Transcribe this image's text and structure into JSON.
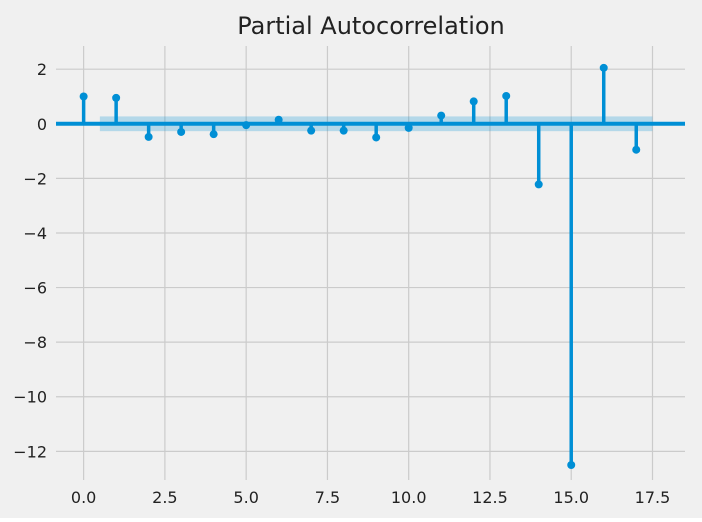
{
  "chart_data": {
    "type": "stem",
    "title": "Partial Autocorrelation",
    "xlabel": "",
    "ylabel": "",
    "xlim": [
      -0.85,
      18.5
    ],
    "ylim": [
      -13.05,
      2.85
    ],
    "x_ticks": [
      0.0,
      2.5,
      5.0,
      7.5,
      10.0,
      12.5,
      15.0,
      17.5
    ],
    "x_tick_labels": [
      "0.0",
      "2.5",
      "5.0",
      "7.5",
      "10.0",
      "12.5",
      "15.0",
      "17.5"
    ],
    "y_ticks": [
      2,
      0,
      -2,
      -4,
      -6,
      -8,
      -10,
      -12
    ],
    "y_tick_labels": [
      "2",
      "0",
      "−2",
      "−4",
      "−6",
      "−8",
      "−10",
      "−12"
    ],
    "grid": true,
    "lags": [
      0,
      1,
      2,
      3,
      4,
      5,
      6,
      7,
      8,
      9,
      10,
      11,
      12,
      13,
      14,
      15,
      16,
      17
    ],
    "values": [
      1.0,
      0.95,
      -0.48,
      -0.3,
      -0.38,
      -0.05,
      0.15,
      -0.25,
      -0.25,
      -0.5,
      -0.15,
      0.3,
      0.82,
      1.02,
      -2.22,
      -12.5,
      2.05,
      -0.95
    ],
    "confidence_band": {
      "x_range": [
        0.5,
        17.5
      ],
      "lower": -0.27,
      "upper": 0.27
    },
    "colors": {
      "stem": "#008fd5",
      "band": "#008fd5",
      "background": "#f0f0f0",
      "grid": "#cbcbcb",
      "text": "#222222"
    }
  }
}
